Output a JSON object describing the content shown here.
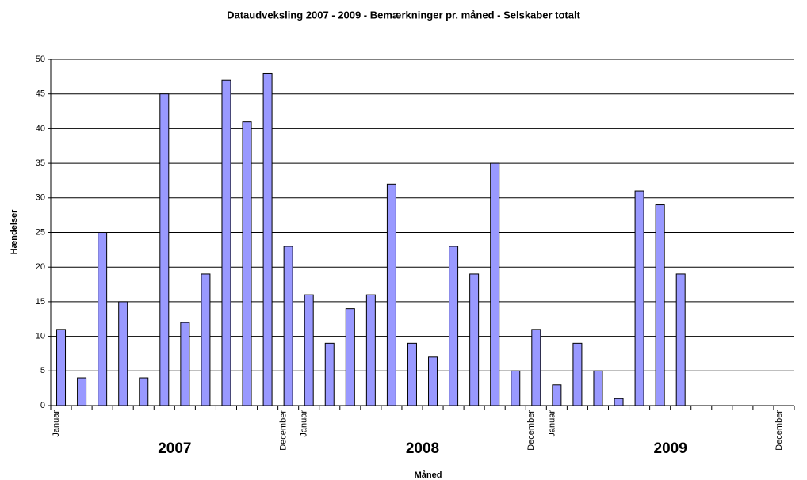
{
  "chart_data": {
    "type": "bar",
    "title": "Dataudveksling 2007 - 2009 - Bemærkninger pr. måned - Selskaber totalt",
    "x_label": "Måned",
    "y_label": "Hændelser",
    "categories": [
      "Januar",
      null,
      null,
      null,
      null,
      null,
      null,
      null,
      null,
      null,
      null,
      "December",
      "Januar",
      null,
      null,
      null,
      null,
      null,
      null,
      null,
      null,
      null,
      null,
      "December",
      "Januar",
      null,
      null,
      null,
      null,
      null,
      null,
      null,
      null,
      null,
      null,
      "December"
    ],
    "year_labels": [
      "2007",
      "2008",
      "2009"
    ],
    "values": [
      11,
      4,
      25,
      15,
      4,
      45,
      12,
      19,
      47,
      41,
      48,
      23,
      16,
      9,
      14,
      16,
      32,
      9,
      7,
      23,
      19,
      35,
      5,
      11,
      3,
      9,
      5,
      1,
      31,
      29,
      19,
      null,
      null,
      null,
      null,
      null
    ],
    "color": "#9999ff",
    "ylim": [
      0,
      50
    ],
    "yticks": [
      0,
      5,
      10,
      15,
      20,
      25,
      30,
      35,
      40,
      45,
      50
    ],
    "grid": true
  }
}
